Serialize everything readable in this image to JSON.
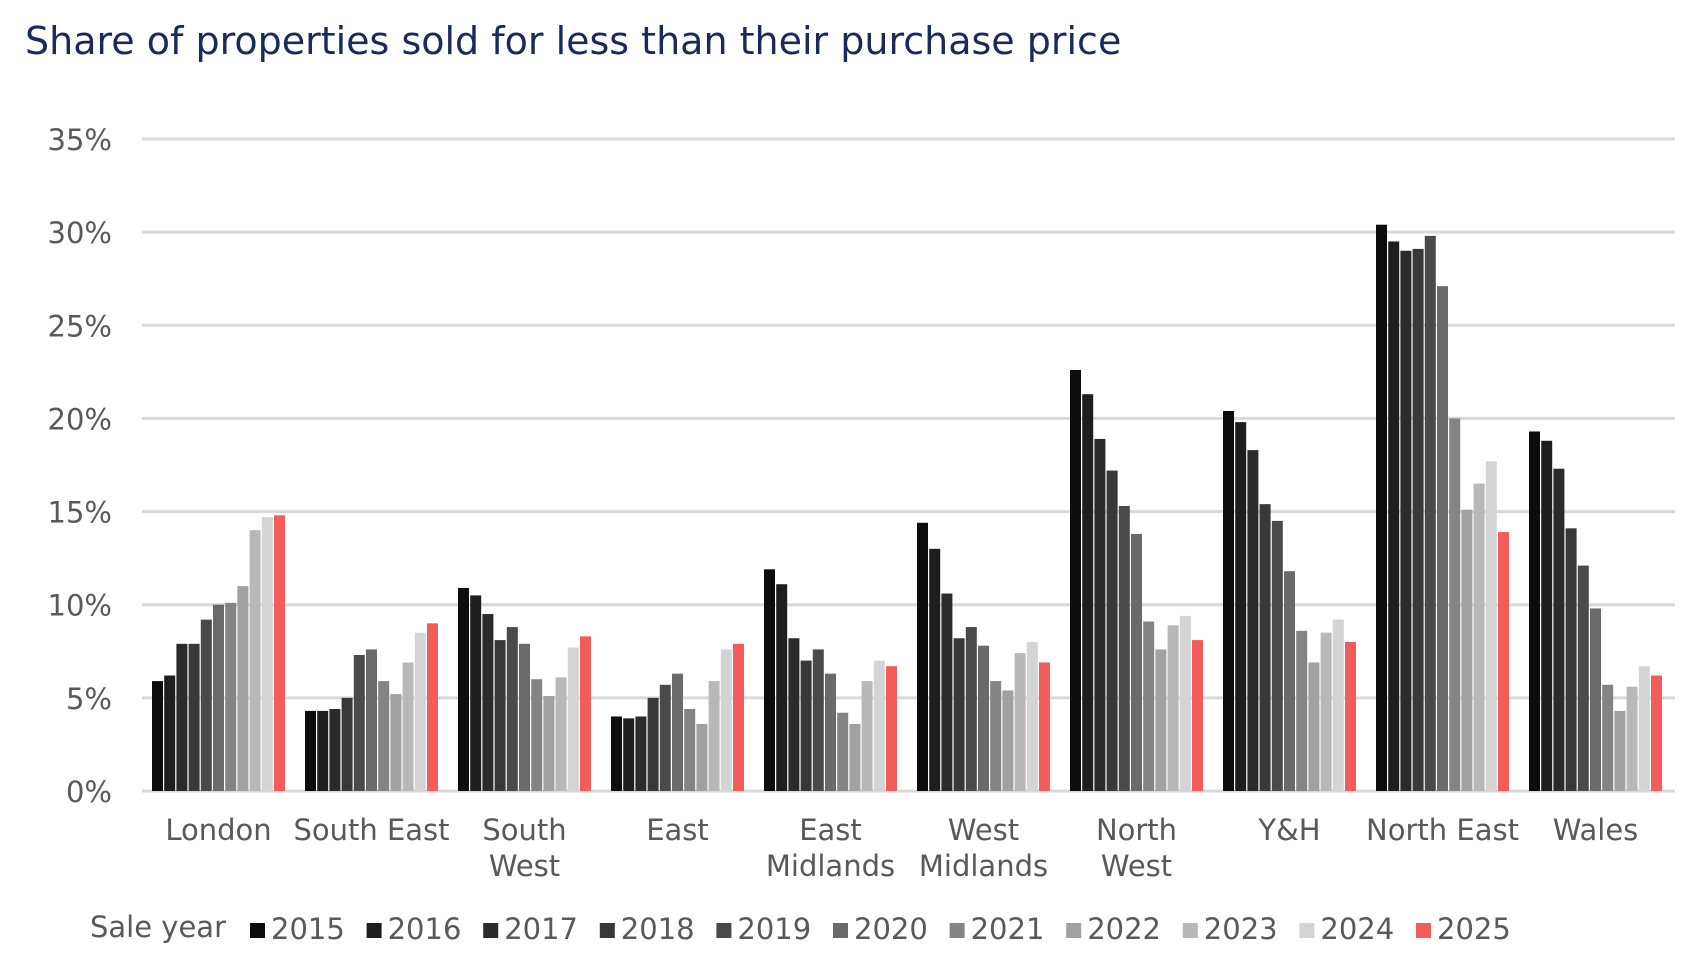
{
  "chart_data": {
    "type": "bar",
    "title": "Share of properties sold for less than their purchase price",
    "xlabel": "",
    "ylabel": "",
    "ylim": [
      0,
      35
    ],
    "y_ticks": [
      0,
      5,
      10,
      15,
      20,
      25,
      30,
      35
    ],
    "y_tick_labels": [
      "0%",
      "5%",
      "10%",
      "15%",
      "20%",
      "25%",
      "30%",
      "35%"
    ],
    "grid": true,
    "legend_position": "bottom",
    "legend_title": "Sale year",
    "categories": [
      "London",
      "South East",
      "South West",
      "East",
      "East Midlands",
      "West Midlands",
      "North West",
      "Y&H",
      "North East",
      "Wales"
    ],
    "category_label_lines": [
      [
        "London"
      ],
      [
        "South East"
      ],
      [
        "South",
        "West"
      ],
      [
        "East"
      ],
      [
        "East",
        "Midlands"
      ],
      [
        "West",
        "Midlands"
      ],
      [
        "North",
        "West"
      ],
      [
        "Y&H"
      ],
      [
        "North East"
      ],
      [
        "Wales"
      ]
    ],
    "series": [
      {
        "name": "2015",
        "color": "#0d0d0d",
        "values": [
          5.9,
          4.3,
          10.9,
          4.0,
          11.9,
          14.4,
          22.6,
          20.4,
          30.4,
          19.3
        ]
      },
      {
        "name": "2016",
        "color": "#1e1e1e",
        "values": [
          6.2,
          4.3,
          10.5,
          3.9,
          11.1,
          13.0,
          21.3,
          19.8,
          29.5,
          18.8
        ]
      },
      {
        "name": "2017",
        "color": "#2b2b2b",
        "values": [
          7.9,
          4.4,
          9.5,
          4.0,
          8.2,
          10.6,
          18.9,
          18.3,
          29.0,
          17.3
        ]
      },
      {
        "name": "2018",
        "color": "#383838",
        "values": [
          7.9,
          5.0,
          8.1,
          5.0,
          7.0,
          8.2,
          17.2,
          15.4,
          29.1,
          14.1
        ]
      },
      {
        "name": "2019",
        "color": "#4a4a4a",
        "values": [
          9.2,
          7.3,
          8.8,
          5.7,
          7.6,
          8.8,
          15.3,
          14.5,
          29.8,
          12.1
        ]
      },
      {
        "name": "2020",
        "color": "#6a6a6a",
        "values": [
          10.0,
          7.6,
          7.9,
          6.3,
          6.3,
          7.8,
          13.8,
          11.8,
          27.1,
          9.8
        ]
      },
      {
        "name": "2021",
        "color": "#848484",
        "values": [
          10.1,
          5.9,
          6.0,
          4.4,
          4.2,
          5.9,
          9.1,
          8.6,
          20.0,
          5.7
        ]
      },
      {
        "name": "2022",
        "color": "#a1a1a1",
        "values": [
          11.0,
          5.2,
          5.1,
          3.6,
          3.6,
          5.4,
          7.6,
          6.9,
          15.1,
          4.3
        ]
      },
      {
        "name": "2023",
        "color": "#b8b8b8",
        "values": [
          14.0,
          6.9,
          6.1,
          5.9,
          5.9,
          7.4,
          8.9,
          8.5,
          16.5,
          5.6
        ]
      },
      {
        "name": "2024",
        "color": "#d4d4d4",
        "values": [
          14.7,
          8.5,
          7.7,
          7.6,
          7.0,
          8.0,
          9.4,
          9.2,
          17.7,
          6.7
        ]
      },
      {
        "name": "2025",
        "color": "#f45b5b",
        "values": [
          14.8,
          9.0,
          8.3,
          7.9,
          6.7,
          6.9,
          8.1,
          8.0,
          13.9,
          6.2
        ]
      }
    ]
  }
}
